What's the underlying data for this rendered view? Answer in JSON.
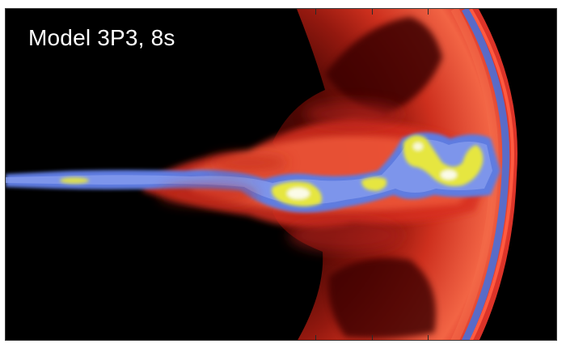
{
  "figure": {
    "label": "Model 3P3, 8s",
    "colors": {
      "background": "#000000",
      "shell": "#e8362a",
      "edge_blue": "#4a70d8",
      "core_yellow": "#e6e640",
      "core_white": "#fbfbe8"
    }
  }
}
